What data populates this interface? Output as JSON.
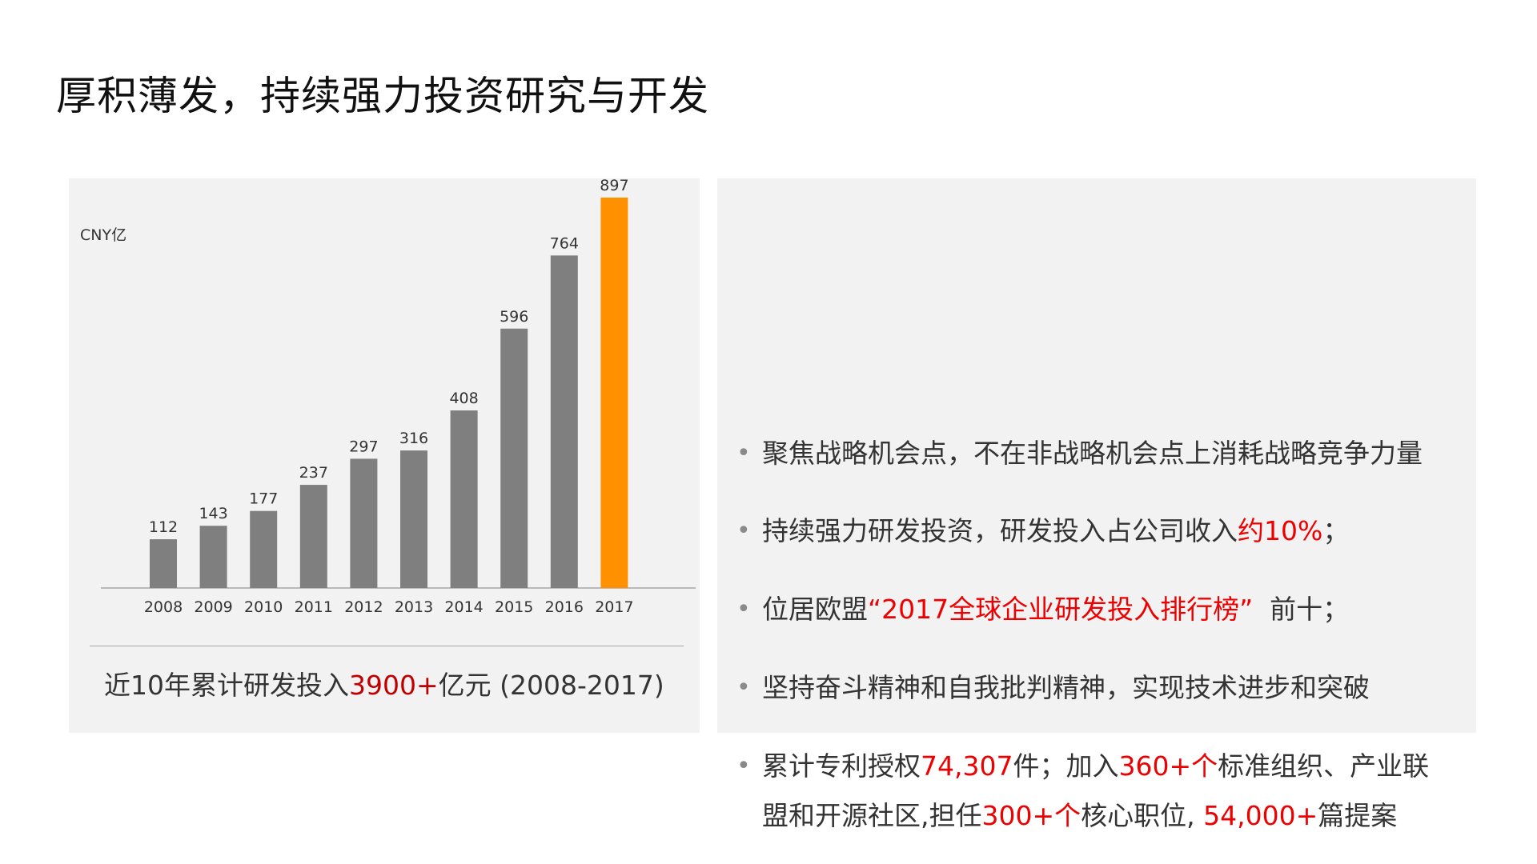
{
  "title": "厚积薄发，持续强力投资研究与开发",
  "chart_data": {
    "type": "bar",
    "unit": "CNY亿",
    "categories": [
      "2008",
      "2009",
      "2010",
      "2011",
      "2012",
      "2013",
      "2014",
      "2015",
      "2016",
      "2017"
    ],
    "values": [
      112,
      143,
      177,
      237,
      297,
      316,
      408,
      596,
      764,
      897
    ],
    "highlight_index": 9,
    "colors": {
      "bar": "#7f7f7f",
      "highlight": "#ff9100",
      "axis": "#a6a6a6",
      "label": "#333333"
    },
    "ylim": [
      0,
      897
    ]
  },
  "summary": {
    "prefix": "近10年累计研发投入",
    "value": "3900+",
    "suffix": "亿元 (2008-2017)"
  },
  "bullets": {
    "b1": {
      "text": "聚焦战略机会点，不在非战略机会点上消耗战略竞争力量"
    },
    "b2": {
      "pre": "持续强力研发投资，研发投入占公司收入",
      "hl": "约10%",
      "post": "；"
    },
    "b3": {
      "pre": "位居欧盟",
      "hl": "“2017全球企业研发投入排行榜”",
      "post": "  前十；"
    },
    "b4": {
      "text": "坚持奋斗精神和自我批判精神，实现技术进步和突破"
    },
    "b5": {
      "p1": "累计专利授权",
      "h1": "74,307",
      "p2": "件；加入",
      "h2": "360+个",
      "p3": "标准组织、产业联",
      "p4": "盟和开源社区,担任",
      "h3": "300+个",
      "p5": "核心职位, ",
      "h4": "54,000+",
      "p6": "篇提案"
    },
    "dot": "•"
  }
}
